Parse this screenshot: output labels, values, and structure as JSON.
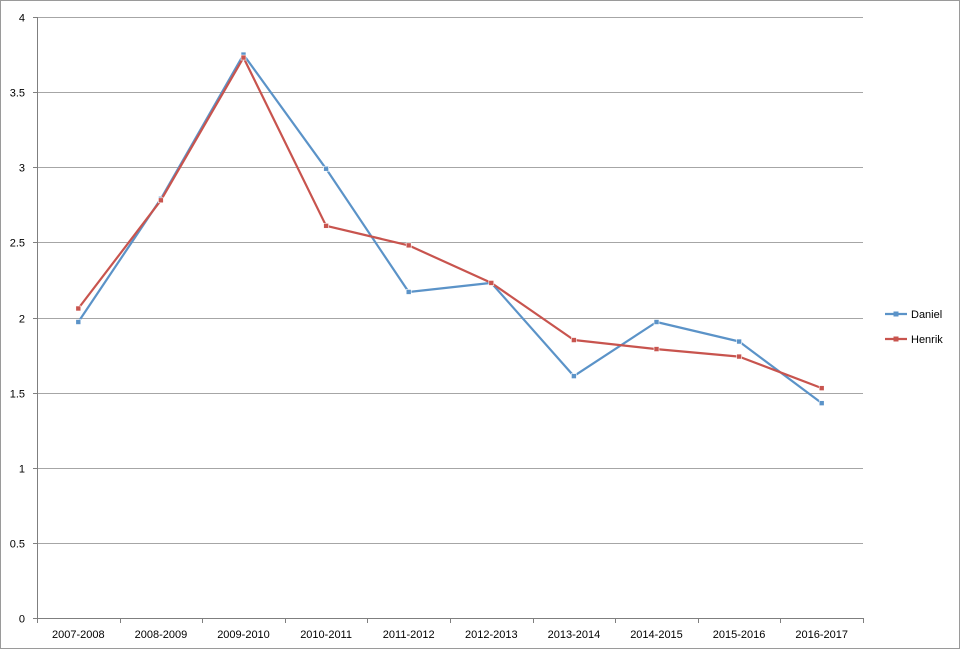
{
  "chart_data": {
    "type": "line",
    "title": "",
    "xlabel": "",
    "ylabel": "",
    "categories": [
      "2007-2008",
      "2008-2009",
      "2009-2010",
      "2010-2011",
      "2011-2012",
      "2012-2013",
      "2013-2014",
      "2014-2015",
      "2015-2016",
      "2016-2017"
    ],
    "ylim": [
      0,
      4
    ],
    "yticks": [
      0,
      0.5,
      1,
      1.5,
      2,
      2.5,
      3,
      3.5,
      4
    ],
    "ytick_labels": [
      "0",
      "0.5",
      "1",
      "1.5",
      "2",
      "2.5",
      "3",
      "3.5",
      "4"
    ],
    "grid": true,
    "legend_position": "right",
    "series": [
      {
        "name": "Daniel",
        "color": "#5b93c8",
        "values": [
          1.97,
          2.79,
          3.75,
          2.99,
          2.17,
          2.23,
          1.61,
          1.97,
          1.84,
          1.43
        ]
      },
      {
        "name": "Henrik",
        "color": "#c8544e",
        "values": [
          2.06,
          2.78,
          3.73,
          2.61,
          2.48,
          2.23,
          1.85,
          1.79,
          1.74,
          1.53
        ]
      }
    ]
  }
}
